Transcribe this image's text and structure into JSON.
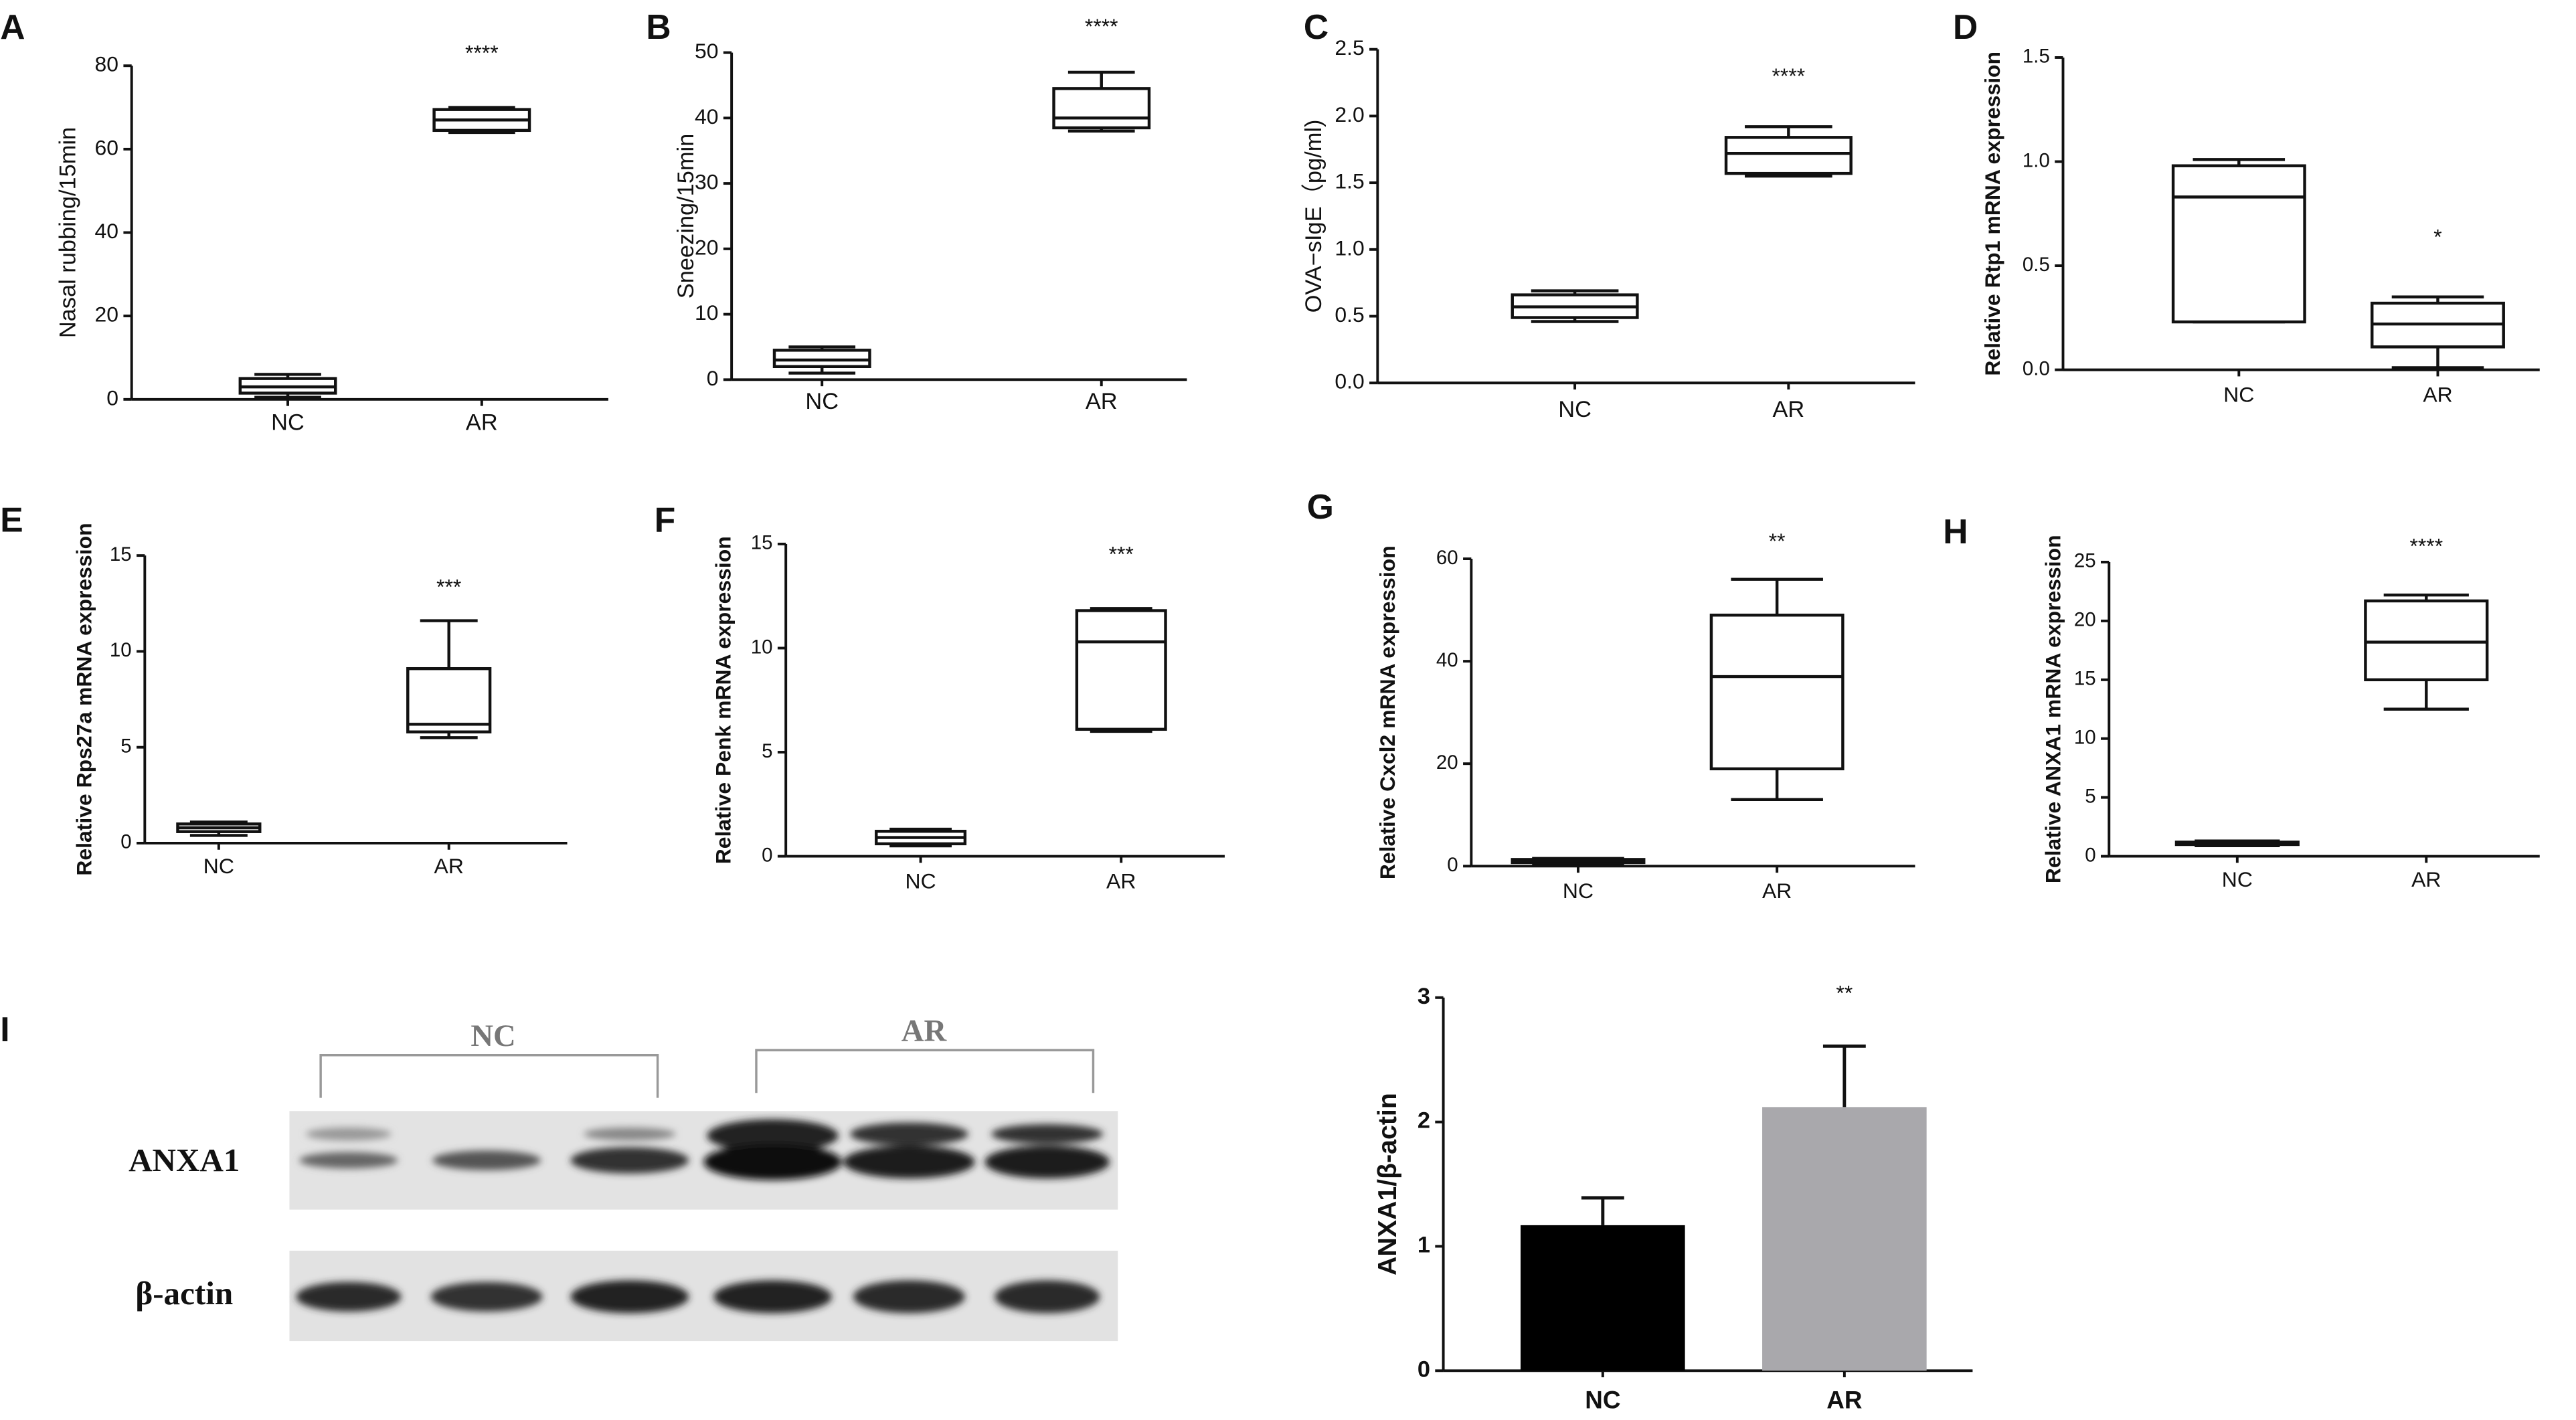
{
  "chart_data": [
    {
      "type": "box",
      "panel": "A",
      "ylabel": "Nasal rubbing/15min",
      "annotation": "****",
      "categories": [
        "NC",
        "AR"
      ],
      "values": [
        {
          "min": 0.5,
          "q1": 1.5,
          "median": 3,
          "q3": 5,
          "max": 6
        },
        {
          "min": 64,
          "q1": 64.5,
          "median": 67,
          "q3": 69.5,
          "max": 70
        }
      ],
      "ylim": [
        0,
        80
      ],
      "yticks": [
        0,
        20,
        40,
        60,
        80
      ]
    },
    {
      "type": "box",
      "panel": "B",
      "ylabel": "Sneezing/15min",
      "annotation": "****",
      "categories": [
        "NC",
        "AR"
      ],
      "values": [
        {
          "min": 1,
          "q1": 2,
          "median": 3,
          "q3": 4.5,
          "max": 5
        },
        {
          "min": 38,
          "q1": 38.5,
          "median": 40,
          "q3": 44.5,
          "max": 47
        }
      ],
      "ylim": [
        0,
        50
      ],
      "yticks": [
        0,
        10,
        20,
        30,
        40,
        50
      ]
    },
    {
      "type": "box",
      "panel": "C",
      "ylabel": "OVA−sIgE（pg/ml)",
      "annotation": "****",
      "categories": [
        "NC",
        "AR"
      ],
      "values": [
        {
          "min": 0.46,
          "q1": 0.49,
          "median": 0.57,
          "q3": 0.66,
          "max": 0.69
        },
        {
          "min": 1.55,
          "q1": 1.57,
          "median": 1.72,
          "q3": 1.84,
          "max": 1.92
        }
      ],
      "ylim": [
        0,
        2.5
      ],
      "yticks": [
        {
          "value": 0,
          "label": "0.0"
        },
        0.5,
        {
          "value": 1,
          "label": "1.0"
        },
        1.5,
        {
          "value": 2,
          "label": "2.0"
        },
        2.5
      ]
    },
    {
      "type": "box",
      "panel": "D",
      "ylabel": "Relative Rtp1 mRNA expression",
      "annotation": "*",
      "categories": [
        "NC",
        "AR"
      ],
      "values": [
        {
          "min": 0.23,
          "q1": 0.23,
          "median": 0.83,
          "q3": 0.98,
          "max": 1.01
        },
        {
          "min": 0.01,
          "q1": 0.11,
          "median": 0.22,
          "q3": 0.32,
          "max": 0.35
        }
      ],
      "ylim": [
        0,
        1.5
      ],
      "yticks": [
        {
          "value": 0,
          "label": "0.0"
        },
        0.5,
        {
          "value": 1,
          "label": "1.0"
        },
        1.5
      ]
    },
    {
      "type": "box",
      "panel": "E",
      "ylabel": "Relative Rps27a mRNA expression",
      "annotation": "***",
      "categories": [
        "NC",
        "AR"
      ],
      "values": [
        {
          "min": 0.4,
          "q1": 0.6,
          "median": 0.8,
          "q3": 1.0,
          "max": 1.1
        },
        {
          "min": 5.5,
          "q1": 5.8,
          "median": 6.2,
          "q3": 9.1,
          "max": 11.6
        }
      ],
      "ylim": [
        0,
        15
      ],
      "yticks": [
        0,
        5,
        10,
        15
      ]
    },
    {
      "type": "box",
      "panel": "F",
      "ylabel": "Relative Penk mRNA expression",
      "annotation": "***",
      "categories": [
        "NC",
        "AR"
      ],
      "values": [
        {
          "min": 0.5,
          "q1": 0.6,
          "median": 0.9,
          "q3": 1.2,
          "max": 1.3
        },
        {
          "min": 6.0,
          "q1": 6.1,
          "median": 10.3,
          "q3": 11.8,
          "max": 11.9
        }
      ],
      "ylim": [
        0,
        15
      ],
      "yticks": [
        0,
        5,
        10,
        15
      ]
    },
    {
      "type": "box",
      "panel": "G",
      "ylabel": "Relative Cxcl2 mRNA expression",
      "annotation": "**",
      "categories": [
        "NC",
        "AR"
      ],
      "values": [
        {
          "min": 0.5,
          "q1": 0.7,
          "median": 1,
          "q3": 1.3,
          "max": 1.5
        },
        {
          "min": 13,
          "q1": 19,
          "median": 37,
          "q3": 49,
          "max": 56
        }
      ],
      "ylim": [
        0,
        60
      ],
      "yticks": [
        0,
        20,
        40,
        60
      ]
    },
    {
      "type": "box",
      "panel": "H",
      "ylabel": "Relative ANXA1 mRNA expression",
      "annotation": "****",
      "categories": [
        "NC",
        "AR"
      ],
      "values": [
        {
          "min": 0.9,
          "q1": 1.0,
          "median": 1.1,
          "q3": 1.2,
          "max": 1.3
        },
        {
          "min": 12.5,
          "q1": 15,
          "median": 18.2,
          "q3": 21.7,
          "max": 22.2
        }
      ],
      "ylim": [
        0,
        25
      ],
      "yticks": [
        0,
        5,
        10,
        15,
        20,
        25
      ]
    },
    {
      "type": "bar",
      "ylabel": "ANXA1/β-actin",
      "annotation": "**",
      "categories": [
        "NC",
        "AR"
      ],
      "values": [
        1.17,
        2.12
      ],
      "errors": [
        0.22,
        0.49
      ],
      "colors": [
        "#000000",
        "#a9a8ac"
      ],
      "ylim": [
        0,
        3
      ],
      "yticks": [
        0,
        1,
        2,
        3
      ]
    }
  ],
  "blot": {
    "panel": "I",
    "groups": [
      "NC",
      "AR"
    ],
    "rows": [
      "ANXA1",
      "β-actin"
    ]
  }
}
